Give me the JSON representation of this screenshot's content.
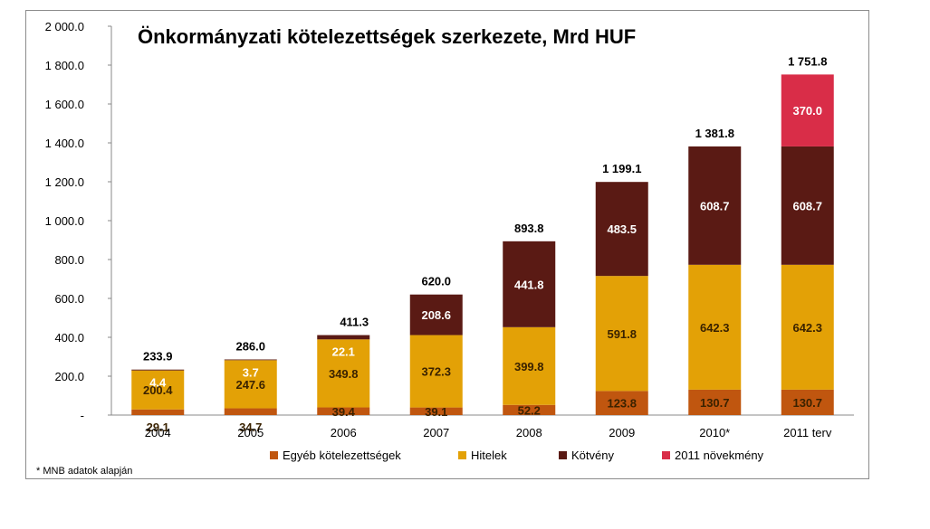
{
  "chart_data": {
    "type": "bar",
    "stacked": true,
    "title": "Önkormányzati kötelezettségek szerkezete, Mrd HUF",
    "categories": [
      "2004",
      "2005",
      "2006",
      "2007",
      "2008",
      "2009",
      "2010*",
      "2011 terv"
    ],
    "series": [
      {
        "name": "Egyéb kötelezettségek",
        "color": "#c0560f",
        "values": [
          29.1,
          34.7,
          39.4,
          39.1,
          52.2,
          123.8,
          130.7,
          130.7
        ],
        "labels": [
          "29.1",
          "34.7",
          "39.4",
          "39.1",
          "52.2",
          "123.8",
          "130.7",
          "130.7"
        ]
      },
      {
        "name": "Hitelek",
        "color": "#e3a106",
        "values": [
          200.4,
          247.6,
          349.8,
          372.3,
          399.8,
          591.8,
          642.3,
          642.3
        ],
        "labels": [
          "200.4",
          "247.6",
          "349.8",
          "372.3",
          "399.8",
          "591.8",
          "642.3",
          "642.3"
        ]
      },
      {
        "name": "Kötvény",
        "color": "#5a1a14",
        "values": [
          4.4,
          3.7,
          22.1,
          208.6,
          441.8,
          483.5,
          608.7,
          608.7
        ],
        "labels": [
          "4.4",
          "3.7",
          "22.1",
          "208.6",
          "441.8",
          "483.5",
          "608.7",
          "608.7"
        ]
      },
      {
        "name": "2011 növekmény",
        "color": "#d92d48",
        "values": [
          0,
          0,
          0,
          0,
          0,
          0,
          0,
          370.0
        ],
        "labels": [
          "",
          "",
          "",
          "",
          "",
          "",
          "",
          "370.0"
        ]
      }
    ],
    "totals": [
      "233.9",
      "286.0",
      "411.3",
      "620.0",
      "893.8",
      "1 199.1",
      "1 381.8",
      "1 751.8"
    ],
    "ylim": [
      0,
      2000
    ],
    "yticks": [
      0,
      200,
      400,
      600,
      800,
      1000,
      1200,
      1400,
      1600,
      1800,
      2000
    ],
    "ytick_labels": [
      "-",
      "200.0",
      "400.0",
      "600.0",
      "800.0",
      "1 000.0",
      "1 200.0",
      "1 400.0",
      "1 600.0",
      "1 800.0",
      "2 000.0"
    ],
    "grid": false,
    "legend_position": "bottom"
  },
  "footnote": "* MNB adatok alapján"
}
